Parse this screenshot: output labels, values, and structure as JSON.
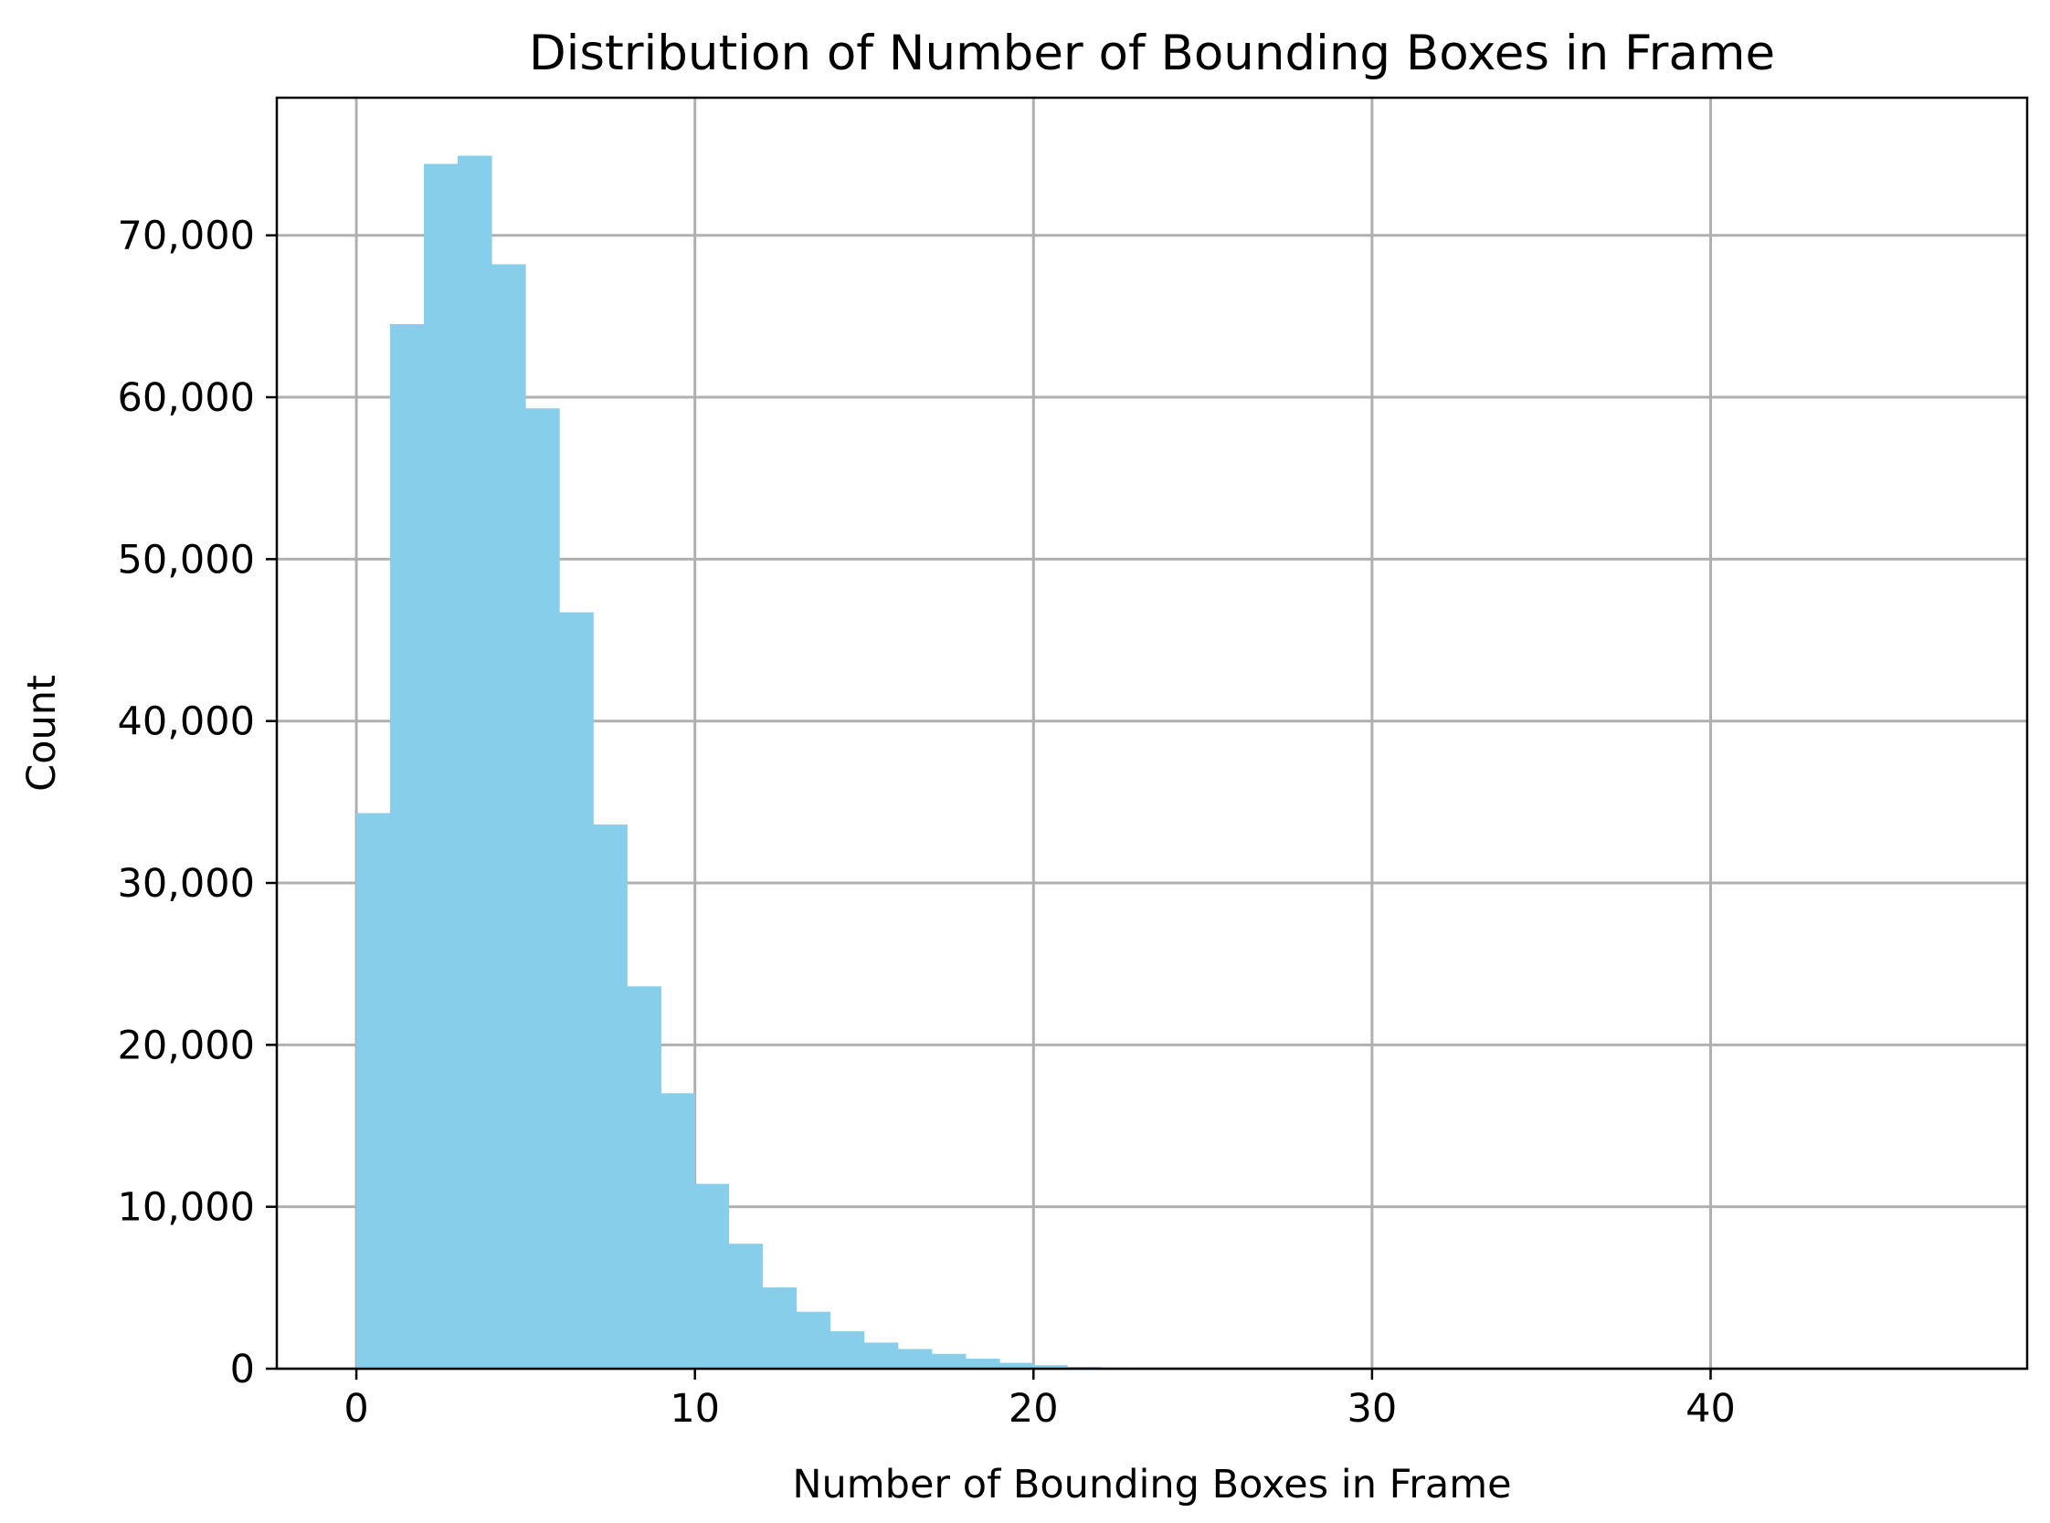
{
  "chart_data": {
    "type": "bar",
    "title": "Distribution of Number of Bounding Boxes in Frame",
    "xlabel": "Number of Bounding Boxes in Frame",
    "ylabel": "Count",
    "xlim": [
      -2.35,
      49.35
    ],
    "ylim": [
      0,
      78500
    ],
    "xticks": [
      0,
      10,
      20,
      30,
      40
    ],
    "xtick_labels": [
      "0",
      "10",
      "20",
      "30",
      "40"
    ],
    "yticks": [
      0,
      10000,
      20000,
      30000,
      40000,
      50000,
      60000,
      70000
    ],
    "ytick_labels": [
      "0",
      "10,000",
      "20,000",
      "30,000",
      "40,000",
      "50,000",
      "60,000",
      "70,000"
    ],
    "grid": true,
    "bar_color": "#87ceeb",
    "bin_width": 1,
    "bin_starts": [
      0,
      1,
      2,
      3,
      4,
      5,
      6,
      7,
      8,
      9,
      10,
      11,
      12,
      13,
      14,
      15,
      16,
      17,
      18,
      19,
      20,
      21,
      22,
      23,
      24,
      25,
      26,
      27,
      28,
      29,
      30,
      31,
      32,
      33,
      34,
      35,
      36,
      37,
      38,
      39,
      40,
      41,
      42,
      43,
      44,
      45,
      46
    ],
    "values": [
      34300,
      64500,
      74400,
      74900,
      68200,
      59300,
      46700,
      33600,
      23600,
      17000,
      11400,
      7700,
      5000,
      3500,
      2300,
      1600,
      1200,
      900,
      600,
      350,
      200,
      100,
      60,
      40,
      25,
      15,
      10,
      8,
      5,
      4,
      3,
      2,
      2,
      1,
      1,
      1,
      1,
      1,
      1,
      1,
      1,
      1,
      1,
      1,
      1,
      1,
      1
    ]
  }
}
